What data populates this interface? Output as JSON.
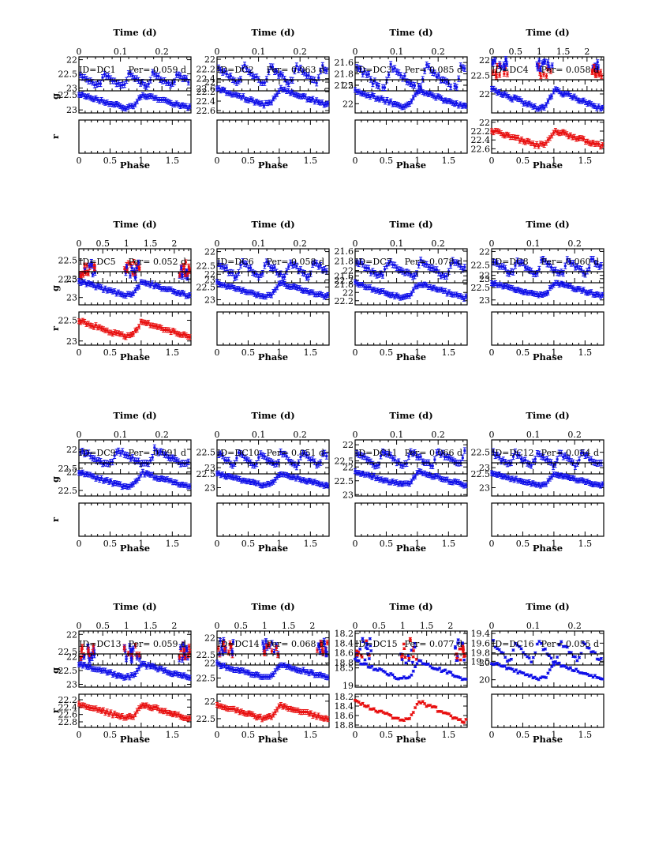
{
  "figure": {
    "top_axis_label": "Time (d)",
    "phase_axis_label": "Phase",
    "g_axis_label": "g",
    "r_axis_label": "r",
    "phase_ticks": [
      "0",
      "0.5",
      "1",
      "1.5"
    ],
    "colors": {
      "g_band": "#1010e8",
      "r_band": "#e81010",
      "axes": "#000000"
    }
  },
  "chart_data": [
    {
      "type": "scatter",
      "id": "DC1",
      "id_text": "ID=DC1",
      "period_text": "Per= 0.059 d",
      "period_d": 0.059,
      "time_range_d": [
        0,
        0.27
      ],
      "time_ticks": [
        "0",
        "0.1",
        "0.2"
      ],
      "time_ylim": [
        23.1,
        21.9
      ],
      "time_yticks": [
        "22",
        "22.5",
        "23"
      ],
      "g_ylim": [
        23.1,
        22.0
      ],
      "g_yticks": [
        "22.5",
        "23"
      ],
      "r_present": false,
      "r_ylim": null,
      "r_yticks": [],
      "g_amplitude_mag": 0.45,
      "g_mean_mag": 22.7,
      "r_amplitude_mag": null,
      "r_mean_mag": null,
      "time_span_d": 0.27
    },
    {
      "type": "scatter",
      "id": "DC2",
      "id_text": "ID=DC2",
      "period_text": "Per= 0.063 d",
      "period_d": 0.063,
      "time_range_d": [
        0,
        0.27
      ],
      "time_ticks": [
        "0",
        "0.1",
        "0.2"
      ],
      "time_ylim": [
        22.65,
        21.95
      ],
      "time_yticks": [
        "22",
        "22.2",
        "22.4",
        "22.6"
      ],
      "g_ylim": [
        22.65,
        21.95
      ],
      "g_yticks": [
        "22",
        "22.2",
        "22.4",
        "22.6"
      ],
      "r_present": false,
      "r_ylim": null,
      "r_yticks": [],
      "g_amplitude_mag": 0.35,
      "g_mean_mag": 22.3,
      "r_amplitude_mag": null,
      "r_mean_mag": null,
      "time_span_d": 0.27
    },
    {
      "type": "scatter",
      "id": "DC3",
      "id_text": "ID=DC3",
      "period_text": "Per= 0.085 d",
      "period_d": 0.085,
      "time_range_d": [
        0,
        0.27
      ],
      "time_ticks": [
        "0",
        "0.1",
        "0.2"
      ],
      "time_ylim": [
        22.1,
        21.5
      ],
      "time_yticks": [
        "21.6",
        "21.8",
        "22"
      ],
      "g_ylim": [
        22.25,
        21.35
      ],
      "g_yticks": [
        "21.5",
        "22"
      ],
      "r_present": false,
      "r_ylim": null,
      "r_yticks": [],
      "g_amplitude_mag": 0.45,
      "g_mean_mag": 21.85,
      "r_amplitude_mag": null,
      "r_mean_mag": null,
      "time_span_d": 0.27
    },
    {
      "type": "scatter",
      "id": "DC4",
      "id_text": "ID=DC4",
      "period_text": "Per= 0.058 d",
      "period_d": 0.058,
      "time_range_d": [
        0,
        2.35
      ],
      "time_ticks": [
        "0",
        "0.5",
        "1",
        "1.5",
        "2"
      ],
      "time_ylim": [
        23.0,
        21.9
      ],
      "time_yticks": [
        "22",
        "22.5"
      ],
      "g_ylim": [
        22.4,
        21.7
      ],
      "g_yticks": [
        "22",
        "22.5"
      ],
      "r_present": true,
      "r_ylim": [
        22.7,
        21.95
      ],
      "r_yticks": [
        "22",
        "22.2",
        "22.4",
        "22.6"
      ],
      "g_amplitude_mag": 0.4,
      "g_mean_mag": 22.1,
      "r_amplitude_mag": 0.35,
      "r_mean_mag": 22.35,
      "time_span_d": 2.35
    },
    {
      "type": "scatter",
      "id": "DC5",
      "id_text": "ID=DC5",
      "period_text": "Per= 0.052 d",
      "period_d": 0.052,
      "time_range_d": [
        0,
        2.35
      ],
      "time_ticks": [
        "0",
        "0.5",
        "1",
        "1.5",
        "2"
      ],
      "time_ylim": [
        23.1,
        22.2
      ],
      "time_yticks": [
        "22.5",
        "23"
      ],
      "g_ylim": [
        23.2,
        22.3
      ],
      "g_yticks": [
        "22.5",
        "23"
      ],
      "r_present": true,
      "r_ylim": [
        23.1,
        22.3
      ],
      "r_yticks": [
        "22.5",
        "23"
      ],
      "g_amplitude_mag": 0.4,
      "g_mean_mag": 22.75,
      "r_amplitude_mag": 0.4,
      "r_mean_mag": 22.7,
      "time_span_d": 2.35
    },
    {
      "type": "scatter",
      "id": "DC6",
      "id_text": "ID=DC6",
      "period_text": "Per= 0.058 d",
      "period_d": 0.058,
      "time_range_d": [
        0,
        0.27
      ],
      "time_ticks": [
        "0",
        "0.1",
        "0.2"
      ],
      "time_ylim": [
        23.1,
        21.9
      ],
      "time_yticks": [
        "22",
        "22.5",
        "23"
      ],
      "g_ylim": [
        23.2,
        21.9
      ],
      "g_yticks": [
        "22",
        "22.5",
        "23"
      ],
      "r_present": false,
      "r_ylim": null,
      "r_yticks": [],
      "g_amplitude_mag": 0.55,
      "g_mean_mag": 22.6,
      "r_amplitude_mag": null,
      "r_mean_mag": null,
      "time_span_d": 0.27
    },
    {
      "type": "scatter",
      "id": "DC7",
      "id_text": "ID=DC7",
      "period_text": "Per= 0.078 d",
      "period_d": 0.078,
      "time_range_d": [
        0,
        0.27
      ],
      "time_ticks": [
        "0",
        "0.1",
        "0.2"
      ],
      "time_ylim": [
        22.25,
        21.55
      ],
      "time_yticks": [
        "21.6",
        "21.8",
        "22",
        "22.2"
      ],
      "g_ylim": [
        22.3,
        21.5
      ],
      "g_yticks": [
        "21.6",
        "21.8",
        "22",
        "22.2"
      ],
      "r_present": false,
      "r_ylim": null,
      "r_yticks": [],
      "g_amplitude_mag": 0.35,
      "g_mean_mag": 21.95,
      "r_amplitude_mag": null,
      "r_mean_mag": null,
      "time_span_d": 0.27
    },
    {
      "type": "scatter",
      "id": "DC8",
      "id_text": "ID=DC8",
      "period_text": "Per= 0.060 d",
      "period_d": 0.06,
      "time_range_d": [
        0,
        0.27
      ],
      "time_ticks": [
        "0",
        "0.1",
        "0.2"
      ],
      "time_ylim": [
        23.15,
        21.9
      ],
      "time_yticks": [
        "22",
        "22.5",
        "23"
      ],
      "g_ylim": [
        23.2,
        21.85
      ],
      "g_yticks": [
        "22",
        "22.5",
        "23"
      ],
      "r_present": false,
      "r_ylim": null,
      "r_yticks": [],
      "g_amplitude_mag": 0.55,
      "g_mean_mag": 22.55,
      "r_amplitude_mag": null,
      "r_mean_mag": null,
      "time_span_d": 0.27
    },
    {
      "type": "scatter",
      "id": "DC9",
      "id_text": "ID=DC9",
      "period_text": "Per= 0.091 d",
      "period_d": 0.091,
      "time_range_d": [
        0,
        0.27
      ],
      "time_ticks": [
        "0",
        "0.1",
        "0.2"
      ],
      "time_ylim": [
        22.65,
        21.75
      ],
      "time_yticks": [
        "22",
        "22.5"
      ],
      "g_ylim": [
        22.65,
        21.75
      ],
      "g_yticks": [
        "22",
        "22.5"
      ],
      "r_present": false,
      "r_ylim": null,
      "r_yticks": [],
      "g_amplitude_mag": 0.4,
      "g_mean_mag": 22.2,
      "r_amplitude_mag": null,
      "r_mean_mag": null,
      "time_span_d": 0.27
    },
    {
      "type": "scatter",
      "id": "DC10",
      "id_text": "ID=DC10",
      "period_text": "Per= 0.051 d",
      "period_d": 0.051,
      "time_range_d": [
        0,
        0.27
      ],
      "time_ticks": [
        "0",
        "0.1",
        "0.2"
      ],
      "time_ylim": [
        23.2,
        22.1
      ],
      "time_yticks": [
        "22.5",
        "23"
      ],
      "g_ylim": [
        23.3,
        22.1
      ],
      "g_yticks": [
        "22.5",
        "23"
      ],
      "r_present": false,
      "r_ylim": null,
      "r_yticks": [],
      "g_amplitude_mag": 0.45,
      "g_mean_mag": 22.7,
      "r_amplitude_mag": null,
      "r_mean_mag": null,
      "time_span_d": 0.27
    },
    {
      "type": "scatter",
      "id": "DC11",
      "id_text": "ID=DC11",
      "period_text": "Per= 0.066 d",
      "period_d": 0.066,
      "time_range_d": [
        0,
        0.27
      ],
      "time_ticks": [
        "0",
        "0.1",
        "0.2"
      ],
      "time_ylim": [
        22.9,
        21.85
      ],
      "time_yticks": [
        "22",
        "22.5"
      ],
      "g_ylim": [
        23.05,
        21.85
      ],
      "g_yticks": [
        "22",
        "22.5",
        "23"
      ],
      "r_present": false,
      "r_ylim": null,
      "r_yticks": [],
      "g_amplitude_mag": 0.5,
      "g_mean_mag": 22.4,
      "r_amplitude_mag": null,
      "r_mean_mag": null,
      "time_span_d": 0.27
    },
    {
      "type": "scatter",
      "id": "DC12",
      "id_text": "ID=DC12",
      "period_text": "Per= 0.054 d",
      "period_d": 0.054,
      "time_range_d": [
        0,
        0.27
      ],
      "time_ticks": [
        "0",
        "0.1",
        "0.2"
      ],
      "time_ylim": [
        23.2,
        22.1
      ],
      "time_yticks": [
        "22.5",
        "23"
      ],
      "g_ylim": [
        23.3,
        22.1
      ],
      "g_yticks": [
        "22.5",
        "23"
      ],
      "r_present": false,
      "r_ylim": null,
      "r_yticks": [],
      "g_amplitude_mag": 0.45,
      "g_mean_mag": 22.7,
      "r_amplitude_mag": null,
      "r_mean_mag": null,
      "time_span_d": 0.27
    },
    {
      "type": "scatter",
      "id": "DC13",
      "id_text": "ID=DC13",
      "period_text": "Per= 0.059 d",
      "period_d": 0.059,
      "time_range_d": [
        0,
        2.35
      ],
      "time_ticks": [
        "0",
        "0.5",
        "1",
        "1.5",
        "2"
      ],
      "time_ylim": [
        22.9,
        21.9
      ],
      "time_yticks": [
        "22",
        "22.5"
      ],
      "g_ylim": [
        23.1,
        21.9
      ],
      "g_yticks": [
        "22",
        "22.5",
        "23"
      ],
      "r_present": true,
      "r_ylim": [
        22.95,
        22.05
      ],
      "r_yticks": [
        "22.2",
        "22.4",
        "22.6",
        "22.8"
      ],
      "g_amplitude_mag": 0.5,
      "g_mean_mag": 22.5,
      "r_amplitude_mag": 0.4,
      "r_mean_mag": 22.5,
      "time_span_d": 2.35
    },
    {
      "type": "scatter",
      "id": "DC14",
      "id_text": "ID=DC14",
      "period_text": "Per= 0.068 d",
      "period_d": 0.068,
      "time_range_d": [
        0,
        2.35
      ],
      "time_ticks": [
        "0",
        "0.5",
        "1",
        "1.5",
        "2"
      ],
      "time_ylim": [
        22.8,
        21.8
      ],
      "time_yticks": [
        "22",
        "22.5"
      ],
      "g_ylim": [
        22.8,
        21.7
      ],
      "g_yticks": [
        "22",
        "22.5"
      ],
      "r_present": true,
      "r_ylim": [
        22.75,
        21.8
      ],
      "r_yticks": [
        "22",
        "22.5"
      ],
      "g_amplitude_mag": 0.45,
      "g_mean_mag": 22.25,
      "r_amplitude_mag": 0.4,
      "r_mean_mag": 22.3,
      "time_span_d": 2.35
    },
    {
      "type": "scatter",
      "id": "DC15",
      "id_text": "ID=DC15",
      "period_text": "Per= 0.077 d",
      "period_d": 0.077,
      "time_range_d": [
        0,
        2.35
      ],
      "time_ticks": [
        "0",
        "0.5",
        "1",
        "1.5",
        "2"
      ],
      "time_ylim": [
        18.85,
        18.15
      ],
      "time_yticks": [
        "18.2",
        "18.4",
        "18.6",
        "18.8"
      ],
      "g_ylim": [
        19.05,
        18.1
      ],
      "g_yticks": [
        "18.5",
        "19"
      ],
      "r_present": true,
      "r_ylim": [
        18.85,
        18.15
      ],
      "r_yticks": [
        "18.2",
        "18.4",
        "18.6",
        "18.8"
      ],
      "g_amplitude_mag": 0.55,
      "g_mean_mag": 18.55,
      "r_amplitude_mag": 0.45,
      "r_mean_mag": 18.5,
      "time_span_d": 2.35
    },
    {
      "type": "scatter",
      "id": "DC16",
      "id_text": "ID=DC16",
      "period_text": "Per= 0.055 d",
      "period_d": 0.055,
      "time_range_d": [
        0,
        0.27
      ],
      "time_ticks": [
        "0",
        "0.1",
        "0.2"
      ],
      "time_ylim": [
        20.05,
        19.35
      ],
      "time_yticks": [
        "19.4",
        "19.6",
        "19.8",
        "20"
      ],
      "g_ylim": [
        20.2,
        19.3
      ],
      "g_yticks": [
        "19.5",
        "20"
      ],
      "r_present": false,
      "r_ylim": null,
      "r_yticks": [],
      "g_amplitude_mag": 0.45,
      "g_mean_mag": 19.75,
      "r_amplitude_mag": null,
      "r_mean_mag": null,
      "time_span_d": 0.27
    }
  ]
}
